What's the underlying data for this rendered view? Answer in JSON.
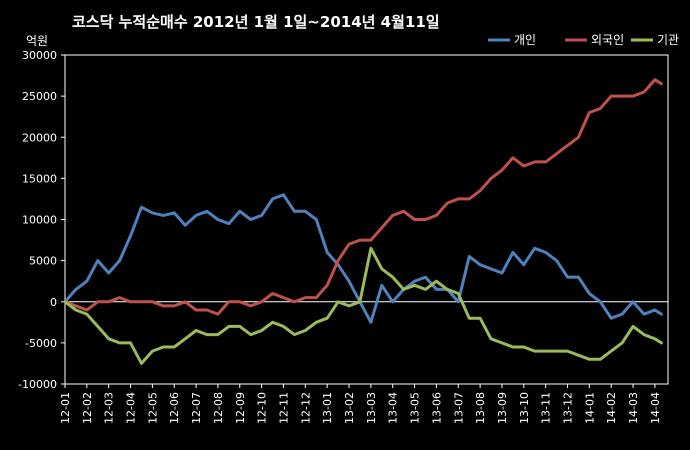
{
  "chart_data": {
    "type": "line",
    "title": "코스닥  누적순매수 2012년 1월 1일~2014년 4월11일",
    "ylabel": "억원",
    "xlabel": "",
    "ylim": [
      -10000,
      30000
    ],
    "yticks": [
      30000,
      25000,
      20000,
      15000,
      10000,
      5000,
      0,
      -5000,
      -10000
    ],
    "xtick_labels": [
      "12-01",
      "12-02",
      "12-03",
      "12-04",
      "12-05",
      "12-06",
      "12-07",
      "12-08",
      "12-09",
      "12-10",
      "12-11",
      "12-12",
      "13-01",
      "13-02",
      "13-03",
      "13-04",
      "13-05",
      "13-06",
      "13-07",
      "13-08",
      "13-09",
      "13-10",
      "13-11",
      "13-12",
      "14-01",
      "14-02",
      "14-03",
      "14-04"
    ],
    "legend_position": "top-right",
    "grid": false,
    "x": [
      0,
      0.5,
      1,
      1.5,
      2,
      2.5,
      3,
      3.5,
      4,
      4.5,
      5,
      5.5,
      6,
      6.5,
      7,
      7.5,
      8,
      8.5,
      9,
      9.5,
      10,
      10.5,
      11,
      11.5,
      12,
      12.5,
      13,
      13.5,
      14,
      14.5,
      15,
      15.5,
      16,
      16.5,
      17,
      17.5,
      18,
      18.5,
      19,
      19.5,
      20,
      20.5,
      21,
      21.5,
      22,
      22.5,
      23,
      23.5,
      24,
      24.5,
      25,
      25.5,
      26,
      26.5,
      27,
      27.3
    ],
    "series": [
      {
        "name": "개인",
        "color": "#4f81bd",
        "values": [
          0,
          1500,
          2500,
          5000,
          3500,
          5000,
          8000,
          11500,
          10800,
          10500,
          10800,
          9300,
          10500,
          11000,
          10000,
          9500,
          11000,
          10000,
          10500,
          12500,
          13000,
          11000,
          11000,
          10000,
          6000,
          4500,
          2500,
          0,
          -2500,
          2000,
          0,
          1500,
          2500,
          3000,
          1500,
          1500,
          0,
          5500,
          4500,
          4000,
          3500,
          6000,
          4500,
          6500,
          6000,
          5000,
          3000,
          3000,
          1000,
          0,
          -2000,
          -1500,
          0,
          -1500,
          -1000,
          -1500
        ]
      },
      {
        "name": "외국인",
        "color": "#c0504d",
        "values": [
          0,
          -500,
          -1000,
          0,
          0,
          500,
          0,
          0,
          0,
          -500,
          -500,
          0,
          -1000,
          -1000,
          -1500,
          0,
          0,
          -500,
          0,
          1000,
          500,
          0,
          500,
          500,
          2000,
          5000,
          7000,
          7500,
          7500,
          9000,
          10500,
          11000,
          10000,
          10000,
          10500,
          12000,
          12500,
          12500,
          13500,
          15000,
          16000,
          17500,
          16500,
          17000,
          17000,
          18000,
          19000,
          20000,
          23000,
          23500,
          25000,
          25000,
          25000,
          25500,
          27000,
          26500
        ]
      },
      {
        "name": "기관",
        "color": "#9bbb59",
        "values": [
          0,
          -1000,
          -1500,
          -3000,
          -4500,
          -5000,
          -5000,
          -7500,
          -6000,
          -5500,
          -5500,
          -4500,
          -3500,
          -4000,
          -4000,
          -3000,
          -3000,
          -4000,
          -3500,
          -2500,
          -3000,
          -4000,
          -3500,
          -2500,
          -2000,
          0,
          -500,
          0,
          6500,
          4000,
          3000,
          1500,
          2000,
          1500,
          2500,
          1500,
          1000,
          -2000,
          -2000,
          -4500,
          -5000,
          -5500,
          -5500,
          -6000,
          -6000,
          -6000,
          -6000,
          -6500,
          -7000,
          -7000,
          -6000,
          -5000,
          -3000,
          -4000,
          -4500,
          -5000
        ]
      }
    ]
  }
}
